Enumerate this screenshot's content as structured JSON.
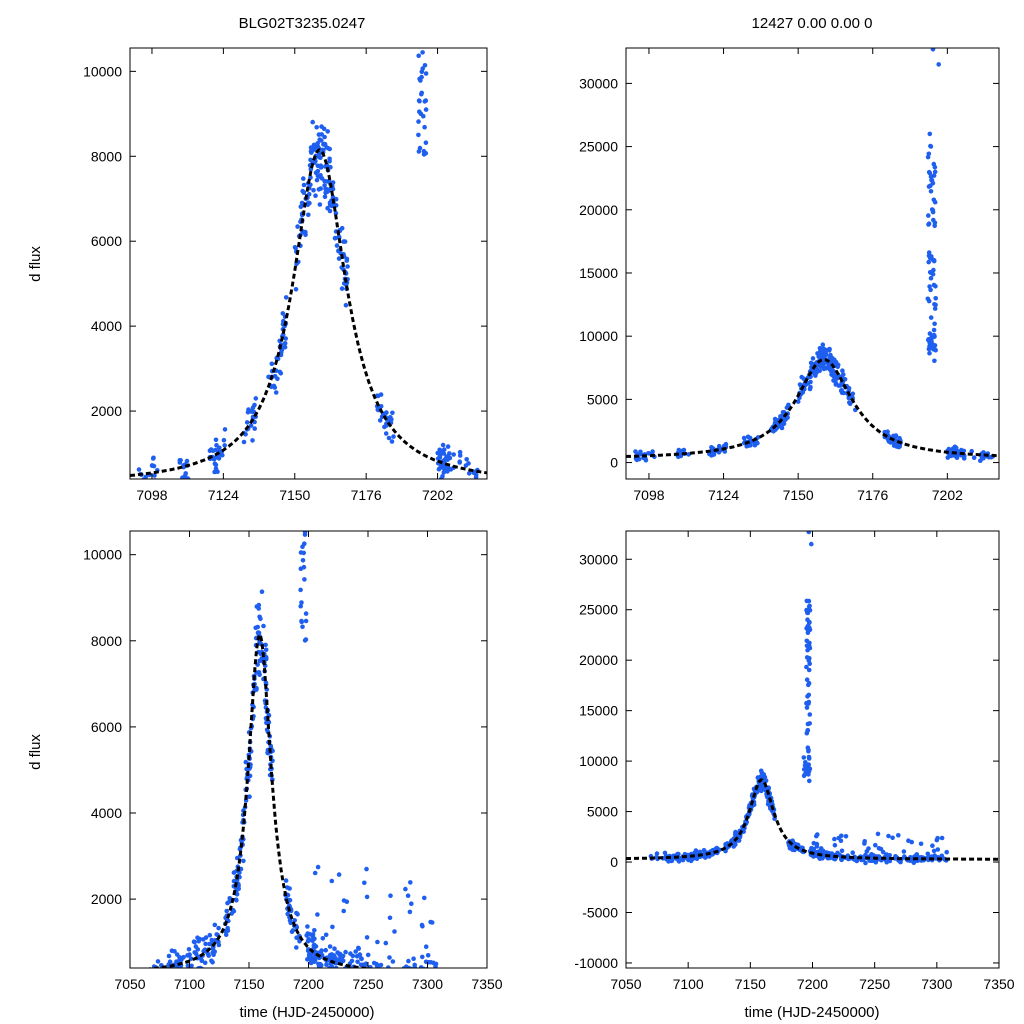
{
  "titles": {
    "left": "BLG02T3235.0247",
    "right": "12427  0.00  0.00  0"
  },
  "labels": {
    "ylabel": "d flux",
    "xlabel": "time (HJD-2450000)"
  },
  "colors": {
    "points": "#1f5ff0",
    "model": "#000000",
    "axis": "#000000"
  },
  "model": {
    "t0": 7159,
    "peak_flux": 8150,
    "baseline_flux": 250,
    "width_days": 12
  },
  "chart_data": [
    {
      "type": "scatter",
      "id": "top-left",
      "title": "BLG02T3235.0247",
      "xlabel": "",
      "ylabel": "d flux",
      "xlim": [
        7090,
        7220
      ],
      "ylim": [
        400,
        10550
      ],
      "xticks": [
        7098,
        7124,
        7150,
        7176,
        7202
      ],
      "yticks": [
        2000,
        4000,
        6000,
        8000,
        10000
      ],
      "series": [
        {
          "name": "data",
          "kind": "points",
          "x_range": [
            7093,
            7218
          ]
        },
        {
          "name": "model",
          "kind": "dashed-curve"
        }
      ]
    },
    {
      "type": "scatter",
      "id": "top-right",
      "title": "12427  0.00  0.00  0",
      "xlabel": "",
      "ylabel": "",
      "xlim": [
        7090,
        7220
      ],
      "ylim": [
        -1300,
        32800
      ],
      "xticks": [
        7098,
        7124,
        7150,
        7176,
        7202
      ],
      "yticks": [
        0,
        5000,
        10000,
        15000,
        20000,
        25000,
        30000
      ],
      "series": [
        {
          "name": "data",
          "kind": "points",
          "x_range": [
            7093,
            7218
          ]
        },
        {
          "name": "model",
          "kind": "dashed-curve"
        }
      ]
    },
    {
      "type": "scatter",
      "id": "bottom-left",
      "title": "",
      "xlabel": "time (HJD-2450000)",
      "ylabel": "d flux",
      "xlim": [
        7050,
        7350
      ],
      "ylim": [
        400,
        10550
      ],
      "xticks": [
        7050,
        7100,
        7150,
        7200,
        7250,
        7300,
        7350
      ],
      "yticks": [
        2000,
        4000,
        6000,
        8000,
        10000
      ],
      "series": [
        {
          "name": "data",
          "kind": "points",
          "x_range": [
            7075,
            7308
          ]
        },
        {
          "name": "model",
          "kind": "dashed-curve"
        }
      ]
    },
    {
      "type": "scatter",
      "id": "bottom-right",
      "title": "",
      "xlabel": "time (HJD-2450000)",
      "ylabel": "",
      "xlim": [
        7050,
        7350
      ],
      "ylim": [
        -10500,
        32800
      ],
      "xticks": [
        7050,
        7100,
        7150,
        7200,
        7250,
        7300,
        7350
      ],
      "yticks": [
        -10000,
        -5000,
        0,
        5000,
        10000,
        15000,
        20000,
        25000,
        30000
      ],
      "series": [
        {
          "name": "data",
          "kind": "points",
          "x_range": [
            7070,
            7308
          ]
        },
        {
          "name": "model",
          "kind": "dashed-curve"
        }
      ]
    }
  ]
}
